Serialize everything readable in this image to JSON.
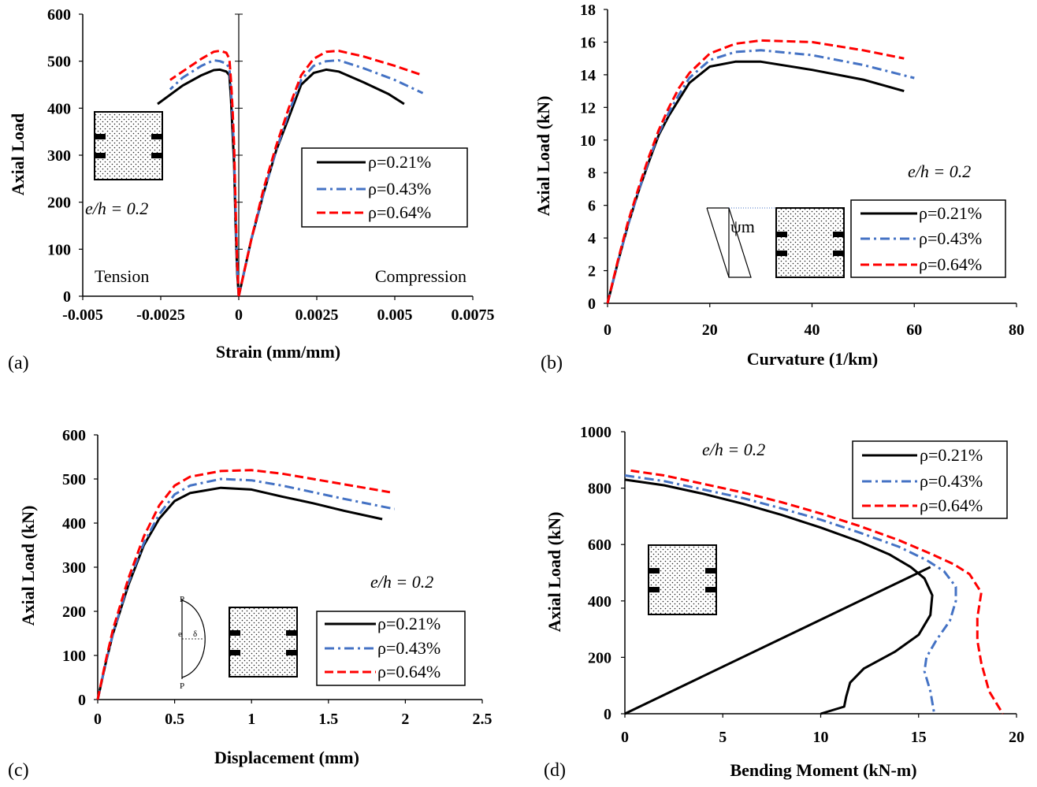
{
  "legend_labels": [
    "ρ=0.21%",
    "ρ=0.43%",
    "ρ=0.64%"
  ],
  "series_colors": [
    "#000000",
    "#4472C4",
    "#FF0000"
  ],
  "eh_text": "e/h = 0.2",
  "chart_data": [
    {
      "panel": "(a)",
      "type": "line",
      "xlabel": "Strain (mm/mm)",
      "ylabel": "Axial Load",
      "xlim": [
        -0.005,
        0.0075
      ],
      "ylim": [
        0,
        600
      ],
      "xticks": [
        "-0.005",
        "-0.0025",
        "0",
        "0.0025",
        "0.005",
        "0.0075"
      ],
      "yticks": [
        "0",
        "100",
        "200",
        "300",
        "400",
        "500",
        "600"
      ],
      "annotations": [
        "Tension",
        "Compression",
        "e/h = 0.2"
      ],
      "legend_position": "center-right",
      "series": [
        {
          "name": "ρ=0.21%",
          "tension": [
            [
              0,
              0
            ],
            [
              -5e-05,
              50
            ],
            [
              -0.0001,
              150
            ],
            [
              -0.00015,
              280
            ],
            [
              -0.0002,
              350
            ],
            [
              -0.00025,
              420
            ],
            [
              -0.0003,
              470
            ],
            [
              -0.0004,
              478
            ],
            [
              -0.0006,
              482
            ],
            [
              -0.0008,
              481
            ],
            [
              -0.0012,
              470
            ],
            [
              -0.0018,
              448
            ],
            [
              -0.0026,
              409
            ]
          ],
          "compression": [
            [
              0,
              0
            ],
            [
              0.0004,
              120
            ],
            [
              0.0008,
              220
            ],
            [
              0.0012,
              310
            ],
            [
              0.0016,
              380
            ],
            [
              0.002,
              450
            ],
            [
              0.0024,
              475
            ],
            [
              0.0028,
              482
            ],
            [
              0.0032,
              478
            ],
            [
              0.004,
              455
            ],
            [
              0.0048,
              430
            ],
            [
              0.0053,
              409
            ]
          ]
        },
        {
          "name": "ρ=0.43%",
          "tension": [
            [
              0,
              0
            ],
            [
              -5e-05,
              60
            ],
            [
              -0.0001,
              170
            ],
            [
              -0.00015,
              300
            ],
            [
              -0.0002,
              380
            ],
            [
              -0.00025,
              440
            ],
            [
              -0.0003,
              485
            ],
            [
              -0.0004,
              495
            ],
            [
              -0.0006,
              500
            ],
            [
              -0.0008,
              502
            ],
            [
              -0.0012,
              490
            ],
            [
              -0.0018,
              465
            ],
            [
              -0.0022,
              440
            ]
          ],
          "compression": [
            [
              0,
              0
            ],
            [
              0.0004,
              120
            ],
            [
              0.0008,
              220
            ],
            [
              0.0012,
              310
            ],
            [
              0.0016,
              390
            ],
            [
              0.002,
              460
            ],
            [
              0.0024,
              490
            ],
            [
              0.0028,
              500
            ],
            [
              0.0032,
              502
            ],
            [
              0.004,
              485
            ],
            [
              0.005,
              460
            ],
            [
              0.0059,
              432
            ]
          ]
        },
        {
          "name": "ρ=0.64%",
          "tension": [
            [
              0,
              0
            ],
            [
              -5e-05,
              70
            ],
            [
              -0.0001,
              190
            ],
            [
              -0.00015,
              320
            ],
            [
              -0.0002,
              400
            ],
            [
              -0.00025,
              460
            ],
            [
              -0.0003,
              505
            ],
            [
              -0.0004,
              518
            ],
            [
              -0.0006,
              522
            ],
            [
              -0.0008,
              520
            ],
            [
              -0.0012,
              505
            ],
            [
              -0.0018,
              478
            ],
            [
              -0.0022,
              460
            ]
          ],
          "compression": [
            [
              0,
              0
            ],
            [
              0.0004,
              120
            ],
            [
              0.0008,
              230
            ],
            [
              0.0012,
              320
            ],
            [
              0.0016,
              400
            ],
            [
              0.002,
              470
            ],
            [
              0.0024,
              505
            ],
            [
              0.0028,
              520
            ],
            [
              0.0032,
              522
            ],
            [
              0.004,
              510
            ],
            [
              0.005,
              490
            ],
            [
              0.0059,
              470
            ]
          ]
        }
      ]
    },
    {
      "panel": "(b)",
      "type": "line",
      "xlabel": "Curvature (1/km)",
      "ylabel": "Axial Load (kN)",
      "xlim": [
        0,
        80
      ],
      "ylim": [
        0,
        18
      ],
      "xticks": [
        "0",
        "20",
        "40",
        "60",
        "80"
      ],
      "yticks": [
        "0",
        "2",
        "4",
        "6",
        "8",
        "10",
        "12",
        "14",
        "16",
        "18"
      ],
      "annotations": [
        "e/h = 0.2",
        "ψm"
      ],
      "legend_position": "bottom-right",
      "series": [
        {
          "name": "ρ=0.21%",
          "points": [
            [
              0,
              0
            ],
            [
              2,
              2.5
            ],
            [
              4,
              4.8
            ],
            [
              6,
              6.8
            ],
            [
              8,
              8.6
            ],
            [
              10,
              10.3
            ],
            [
              12,
              11.5
            ],
            [
              14,
              12.5
            ],
            [
              16,
              13.5
            ],
            [
              20,
              14.5
            ],
            [
              25,
              14.8
            ],
            [
              30,
              14.8
            ],
            [
              40,
              14.3
            ],
            [
              50,
              13.7
            ],
            [
              58,
              13.0
            ]
          ]
        },
        {
          "name": "ρ=0.43%",
          "points": [
            [
              0,
              0
            ],
            [
              2,
              2.5
            ],
            [
              4,
              4.8
            ],
            [
              6,
              6.8
            ],
            [
              8,
              8.7
            ],
            [
              10,
              10.4
            ],
            [
              12,
              11.7
            ],
            [
              14,
              12.8
            ],
            [
              16,
              13.8
            ],
            [
              20,
              14.9
            ],
            [
              25,
              15.4
            ],
            [
              30,
              15.5
            ],
            [
              40,
              15.2
            ],
            [
              50,
              14.6
            ],
            [
              60,
              13.8
            ]
          ]
        },
        {
          "name": "ρ=0.64%",
          "points": [
            [
              0,
              0
            ],
            [
              2,
              2.6
            ],
            [
              4,
              5.0
            ],
            [
              6,
              7.0
            ],
            [
              8,
              8.9
            ],
            [
              10,
              10.6
            ],
            [
              12,
              12.0
            ],
            [
              14,
              13.2
            ],
            [
              16,
              14.1
            ],
            [
              20,
              15.3
            ],
            [
              25,
              15.9
            ],
            [
              30,
              16.1
            ],
            [
              40,
              16.0
            ],
            [
              50,
              15.5
            ],
            [
              58,
              15.0
            ]
          ]
        }
      ]
    },
    {
      "panel": "(c)",
      "type": "line",
      "xlabel": "Displacement (mm)",
      "ylabel": "Axial Load (kN)",
      "xlim": [
        0,
        2.5
      ],
      "ylim": [
        0,
        600
      ],
      "xticks": [
        "0",
        "0.5",
        "1",
        "1.5",
        "2",
        "2.5"
      ],
      "yticks": [
        "0",
        "100",
        "200",
        "300",
        "400",
        "500",
        "600"
      ],
      "annotations": [
        "e/h = 0.2",
        "P",
        "e",
        "δ",
        "P"
      ],
      "legend_position": "bottom-right",
      "series": [
        {
          "name": "ρ=0.21%",
          "points": [
            [
              0,
              0
            ],
            [
              0.05,
              80
            ],
            [
              0.1,
              150
            ],
            [
              0.2,
              260
            ],
            [
              0.3,
              350
            ],
            [
              0.4,
              410
            ],
            [
              0.5,
              450
            ],
            [
              0.6,
              468
            ],
            [
              0.8,
              480
            ],
            [
              1.0,
              476
            ],
            [
              1.2,
              460
            ],
            [
              1.4,
              445
            ],
            [
              1.6,
              428
            ],
            [
              1.85,
              409
            ]
          ]
        },
        {
          "name": "ρ=0.43%",
          "points": [
            [
              0,
              0
            ],
            [
              0.05,
              80
            ],
            [
              0.1,
              150
            ],
            [
              0.2,
              265
            ],
            [
              0.3,
              355
            ],
            [
              0.4,
              420
            ],
            [
              0.5,
              465
            ],
            [
              0.6,
              485
            ],
            [
              0.8,
              500
            ],
            [
              1.0,
              497
            ],
            [
              1.2,
              485
            ],
            [
              1.4,
              470
            ],
            [
              1.6,
              455
            ],
            [
              1.93,
              432
            ]
          ]
        },
        {
          "name": "ρ=0.64%",
          "points": [
            [
              0,
              0
            ],
            [
              0.05,
              85
            ],
            [
              0.1,
              160
            ],
            [
              0.2,
              275
            ],
            [
              0.3,
              370
            ],
            [
              0.4,
              440
            ],
            [
              0.5,
              485
            ],
            [
              0.6,
              505
            ],
            [
              0.8,
              518
            ],
            [
              1.0,
              520
            ],
            [
              1.2,
              512
            ],
            [
              1.4,
              500
            ],
            [
              1.6,
              488
            ],
            [
              1.9,
              470
            ]
          ]
        }
      ]
    },
    {
      "panel": "(d)",
      "type": "line",
      "xlabel": "Bending Moment (kN-m)",
      "ylabel": "Axial Load (kN)",
      "xlim": [
        0,
        20
      ],
      "ylim": [
        0,
        1000
      ],
      "xticks": [
        "0",
        "5",
        "10",
        "15",
        "20"
      ],
      "yticks": [
        "0",
        "200",
        "400",
        "600",
        "800",
        "1000"
      ],
      "annotations": [
        "e/h = 0.2"
      ],
      "legend_position": "top-right",
      "load_path": [
        [
          0,
          0
        ],
        [
          15.6,
          520
        ]
      ],
      "series": [
        {
          "name": "ρ=0.21%",
          "points": [
            [
              0,
              830
            ],
            [
              2,
              810
            ],
            [
              4,
              780
            ],
            [
              6,
              745
            ],
            [
              8,
              705
            ],
            [
              10,
              660
            ],
            [
              12,
              610
            ],
            [
              13.5,
              565
            ],
            [
              14.6,
              520
            ],
            [
              15.3,
              480
            ],
            [
              15.7,
              420
            ],
            [
              15.6,
              350
            ],
            [
              15.0,
              280
            ],
            [
              13.8,
              220
            ],
            [
              12.2,
              160
            ],
            [
              11.5,
              110
            ],
            [
              11.3,
              60
            ],
            [
              11.2,
              25
            ],
            [
              10.0,
              0
            ]
          ]
        },
        {
          "name": "ρ=0.43%",
          "points": [
            [
              0,
              845
            ],
            [
              2,
              825
            ],
            [
              4,
              795
            ],
            [
              6,
              765
            ],
            [
              8,
              728
            ],
            [
              10,
              688
            ],
            [
              12,
              642
            ],
            [
              14,
              592
            ],
            [
              15.4,
              545
            ],
            [
              16.3,
              505
            ],
            [
              16.9,
              450
            ],
            [
              16.9,
              400
            ],
            [
              16.6,
              330
            ],
            [
              15.9,
              260
            ],
            [
              15.4,
              200
            ],
            [
              15.3,
              150
            ],
            [
              15.6,
              80
            ],
            [
              15.8,
              0
            ]
          ]
        },
        {
          "name": "ρ=0.64%",
          "points": [
            [
              0.3,
              862
            ],
            [
              2,
              845
            ],
            [
              4,
              815
            ],
            [
              6,
              785
            ],
            [
              8,
              750
            ],
            [
              10,
              710
            ],
            [
              12,
              665
            ],
            [
              14,
              615
            ],
            [
              15.6,
              568
            ],
            [
              16.8,
              530
            ],
            [
              17.6,
              495
            ],
            [
              18.2,
              430
            ],
            [
              18.0,
              340
            ],
            [
              18.0,
              260
            ],
            [
              18.2,
              180
            ],
            [
              18.6,
              80
            ],
            [
              19.3,
              0
            ]
          ]
        }
      ]
    }
  ]
}
